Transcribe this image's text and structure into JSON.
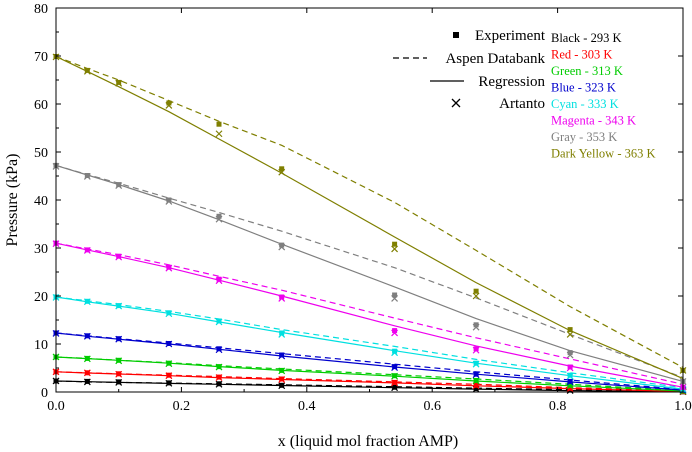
{
  "chart_data": {
    "type": "line",
    "xlabel": "x (liquid mol fraction AMP)",
    "ylabel": "Pressure (kPa)",
    "xlim": [
      0,
      1
    ],
    "ylim": [
      0,
      80
    ],
    "xticks": [
      0.0,
      0.2,
      0.4,
      0.6,
      0.8,
      1.0
    ],
    "xtick_labels": [
      "0.0",
      "0.2",
      "0.4",
      "0.6",
      "0.8",
      "1.0"
    ],
    "yticks": [
      0,
      10,
      20,
      30,
      40,
      50,
      60,
      70,
      80
    ],
    "ytick_labels": [
      "0",
      "10",
      "20",
      "30",
      "40",
      "50",
      "60",
      "70",
      "80"
    ],
    "grid": false,
    "legend_style": [
      {
        "label": "Experiment",
        "marker": "square"
      },
      {
        "label": "Aspen Databank",
        "marker": "dashed"
      },
      {
        "label": "Regression",
        "marker": "solid"
      },
      {
        "label": "Artanto",
        "marker": "cross"
      }
    ],
    "x_points": [
      0.0,
      0.05,
      0.1,
      0.18,
      0.26,
      0.36,
      0.54,
      0.67,
      0.82,
      1.0
    ],
    "series": [
      {
        "name": "Black - 293 K",
        "color": "#000000",
        "experiment": [
          2.3,
          2.2,
          2.1,
          1.9,
          1.7,
          1.4,
          1.0,
          0.7,
          0.4,
          0.05
        ],
        "artanto": [
          2.3,
          2.1,
          2.0,
          1.8,
          1.6,
          1.3,
          0.9,
          0.6,
          0.3,
          0.05
        ],
        "aspen": [
          2.3,
          2.1,
          2.0,
          1.85,
          1.7,
          1.5,
          1.1,
          0.8,
          0.5,
          0.1
        ],
        "regression": [
          2.3,
          2.15,
          2.0,
          1.8,
          1.6,
          1.35,
          0.9,
          0.6,
          0.3,
          0.05
        ]
      },
      {
        "name": "Red - 303 K",
        "color": "#ff0000",
        "experiment": [
          4.2,
          4.0,
          3.8,
          3.5,
          3.1,
          2.7,
          2.0,
          1.4,
          0.8,
          0.1
        ],
        "artanto": [
          4.2,
          4.0,
          3.7,
          3.4,
          3.0,
          2.6,
          1.9,
          1.3,
          0.7,
          0.1
        ],
        "aspen": [
          4.2,
          4.0,
          3.8,
          3.5,
          3.2,
          2.8,
          2.1,
          1.6,
          0.9,
          0.2
        ],
        "regression": [
          4.2,
          3.95,
          3.75,
          3.4,
          3.0,
          2.6,
          1.9,
          1.3,
          0.7,
          0.1
        ]
      },
      {
        "name": "Green - 313 K",
        "color": "#00cc00",
        "experiment": [
          7.3,
          7.0,
          6.6,
          6.0,
          5.3,
          4.5,
          3.4,
          2.4,
          1.4,
          0.2
        ],
        "artanto": [
          7.3,
          6.9,
          6.5,
          5.9,
          5.2,
          4.4,
          3.3,
          2.3,
          1.3,
          0.2
        ],
        "aspen": [
          7.3,
          7.0,
          6.6,
          6.1,
          5.5,
          4.8,
          3.6,
          2.7,
          1.6,
          0.3
        ],
        "regression": [
          7.3,
          6.95,
          6.6,
          6.0,
          5.3,
          4.5,
          3.3,
          2.3,
          1.3,
          0.2
        ]
      },
      {
        "name": "Blue - 323 K",
        "color": "#0000cc",
        "experiment": [
          12.3,
          11.7,
          11.1,
          10.1,
          9.0,
          7.7,
          5.3,
          3.7,
          2.2,
          0.4
        ],
        "artanto": [
          12.2,
          11.6,
          11.0,
          10.0,
          8.8,
          7.5,
          5.1,
          3.6,
          2.1,
          0.4
        ],
        "aspen": [
          12.3,
          11.7,
          11.1,
          10.2,
          9.2,
          8.0,
          5.8,
          4.2,
          2.5,
          0.5
        ],
        "regression": [
          12.3,
          11.6,
          11.0,
          10.0,
          8.9,
          7.5,
          5.2,
          3.7,
          2.1,
          0.4
        ]
      },
      {
        "name": "Cyan - 333 K",
        "color": "#00e0e0",
        "experiment": [
          19.8,
          18.9,
          18.0,
          16.5,
          14.8,
          12.3,
          8.5,
          6.0,
          3.5,
          0.6
        ],
        "artanto": [
          19.7,
          18.8,
          17.9,
          16.3,
          14.6,
          12.0,
          8.2,
          5.8,
          3.3,
          0.6
        ],
        "aspen": [
          19.8,
          19.0,
          18.2,
          16.8,
          15.2,
          13.0,
          9.5,
          6.8,
          4.0,
          0.9
        ],
        "regression": [
          19.8,
          18.8,
          17.9,
          16.4,
          14.6,
          12.4,
          8.6,
          6.0,
          3.4,
          0.6
        ]
      },
      {
        "name": "Magenta - 343 K",
        "color": "#ee00ee",
        "experiment": [
          31.0,
          29.6,
          28.3,
          26.0,
          23.5,
          19.8,
          12.8,
          9.0,
          5.2,
          1.0
        ],
        "artanto": [
          30.9,
          29.5,
          28.1,
          25.8,
          23.2,
          19.5,
          12.3,
          8.7,
          5.0,
          1.0
        ],
        "aspen": [
          31.0,
          29.8,
          28.6,
          26.5,
          24.1,
          21.2,
          15.4,
          11.3,
          6.9,
          1.6
        ],
        "regression": [
          31.0,
          29.6,
          28.2,
          25.9,
          23.3,
          20.0,
          13.8,
          9.6,
          5.4,
          1.0
        ]
      },
      {
        "name": "Gray - 353 K",
        "color": "#7f7f7f",
        "experiment": [
          47.2,
          45.1,
          43.2,
          40.0,
          36.6,
          30.6,
          20.2,
          14.0,
          8.2,
          2.2
        ],
        "artanto": [
          47.0,
          44.9,
          43.0,
          39.7,
          36.0,
          30.2,
          19.5,
          13.5,
          7.7,
          2.2
        ],
        "aspen": [
          47.2,
          45.3,
          43.5,
          40.4,
          37.4,
          33.5,
          25.9,
          19.6,
          12.0,
          3.0
        ],
        "regression": [
          47.2,
          45.2,
          43.2,
          39.8,
          35.9,
          30.8,
          21.9,
          15.3,
          8.6,
          2.2
        ]
      },
      {
        "name": "Dark Yellow - 363 K",
        "color": "#7f7f00",
        "experiment": [
          69.9,
          67.0,
          64.5,
          60.2,
          55.8,
          46.5,
          30.8,
          21.0,
          13.0,
          4.5
        ],
        "artanto": [
          69.8,
          66.8,
          64.3,
          59.7,
          53.8,
          45.8,
          29.8,
          20.0,
          12.0,
          4.5
        ],
        "aspen": [
          69.9,
          67.4,
          65.0,
          60.7,
          56.4,
          51.4,
          39.5,
          29.5,
          17.8,
          5.1
        ],
        "regression": [
          69.9,
          66.8,
          63.6,
          58.4,
          52.7,
          45.6,
          32.3,
          22.8,
          12.8,
          2.8
        ]
      }
    ]
  }
}
